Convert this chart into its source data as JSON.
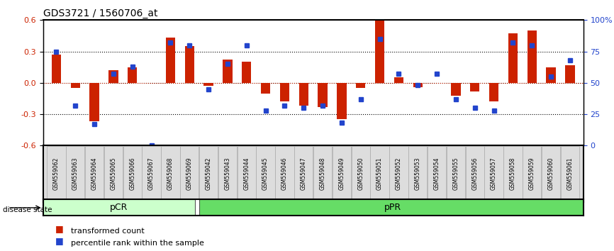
{
  "title": "GDS3721 / 1560706_at",
  "samples": [
    "GSM559062",
    "GSM559063",
    "GSM559064",
    "GSM559065",
    "GSM559066",
    "GSM559067",
    "GSM559068",
    "GSM559069",
    "GSM559042",
    "GSM559043",
    "GSM559044",
    "GSM559045",
    "GSM559046",
    "GSM559047",
    "GSM559048",
    "GSM559049",
    "GSM559050",
    "GSM559051",
    "GSM559052",
    "GSM559053",
    "GSM559054",
    "GSM559055",
    "GSM559056",
    "GSM559057",
    "GSM559058",
    "GSM559059",
    "GSM559060",
    "GSM559061"
  ],
  "transformed_count": [
    0.27,
    -0.05,
    -0.37,
    0.12,
    0.15,
    0.0,
    0.43,
    0.35,
    -0.03,
    0.22,
    0.2,
    -0.1,
    -0.18,
    -0.22,
    -0.23,
    -0.35,
    -0.05,
    0.6,
    0.05,
    -0.04,
    0.0,
    -0.12,
    -0.08,
    -0.18,
    0.47,
    0.5,
    0.15,
    0.17
  ],
  "percentile_rank": [
    75,
    32,
    17,
    57,
    63,
    0,
    82,
    80,
    45,
    65,
    80,
    28,
    32,
    30,
    32,
    18,
    37,
    85,
    57,
    48,
    57,
    37,
    30,
    28,
    82,
    80,
    55,
    68
  ],
  "pCR_count": 8,
  "pPR_count": 20,
  "bar_color": "#cc2200",
  "dot_color": "#2244cc",
  "y_left_label": "",
  "y_right_label": "",
  "ylim": [
    -0.6,
    0.6
  ],
  "yticks_left": [
    -0.6,
    -0.3,
    0.0,
    0.3,
    0.6
  ],
  "yticks_right": [
    0,
    25,
    50,
    75,
    100
  ],
  "hline_color": "#cc2200",
  "hline_style": ":",
  "grid_color": "black",
  "grid_style": ":",
  "pCR_color": "#ccffcc",
  "pPR_color": "#66dd66",
  "background_color": "white",
  "legend_items": [
    "transformed count",
    "percentile rank within the sample"
  ]
}
